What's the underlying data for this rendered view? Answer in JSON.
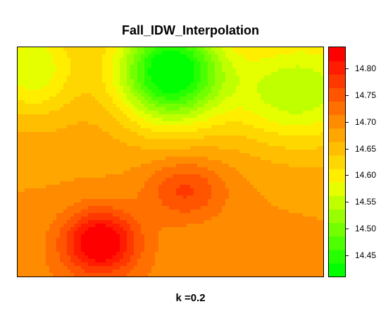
{
  "chart_data": {
    "type": "heatmap",
    "title": "Fall_IDW_Interpolation",
    "xlabel": "k =0.2",
    "ylabel": "",
    "color_scale": {
      "min": 14.41,
      "max": 14.84,
      "step": 0.025,
      "colors_low_to_high": [
        "#00ff00",
        "#26ff00",
        "#4dff00",
        "#73ff00",
        "#99ff00",
        "#bfff00",
        "#e6ff00",
        "#ffee00",
        "#ffd700",
        "#ffbf00",
        "#ffa600",
        "#ff8c00",
        "#ff7000",
        "#ff5500",
        "#ff3800",
        "#ff1c00",
        "#ff0000"
      ]
    },
    "legend_ticks": [
      "14.45",
      "14.50",
      "14.55",
      "14.60",
      "14.65",
      "14.70",
      "14.75",
      "14.80"
    ],
    "surface": {
      "baseline": 14.68,
      "features": [
        {
          "kind": "low",
          "label": "green minimum (north)",
          "value": 14.41,
          "at": [
            0.5,
            0.11
          ]
        },
        {
          "kind": "high",
          "label": "red maximum (south-west)",
          "value": 14.84,
          "at": [
            0.27,
            0.85
          ]
        },
        {
          "kind": "high",
          "label": "orange shoulder",
          "value": 14.76,
          "at": [
            0.55,
            0.62
          ]
        },
        {
          "kind": "low",
          "label": "yellow band (north-east)",
          "value": 14.56,
          "at": [
            0.9,
            0.2
          ]
        },
        {
          "kind": "low",
          "label": "yellow band (north-west)",
          "value": 14.58,
          "at": [
            0.05,
            0.1
          ]
        }
      ]
    }
  }
}
